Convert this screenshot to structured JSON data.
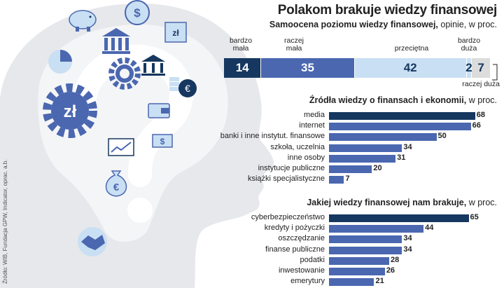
{
  "title": "Polakom brakuje wiedzy finansowej",
  "source": "Źródło: WIB, Fundacja GPW, Indicator, oprac. a.b.",
  "art": {
    "icons": [
      "piggy-bank-icon",
      "dollar-coin-icon",
      "bank-building-icon",
      "zloty-note-icon",
      "pie-chart-icon",
      "gear-icon",
      "zloty-gear-icon",
      "bank-icon",
      "euro-coins-icon",
      "wallet-icon",
      "money-card-icon",
      "rising-chart-icon",
      "cash-icon",
      "euro-bag-icon",
      "handshake-icon"
    ],
    "gear_label": "zł",
    "note_label": "zł",
    "coin_label": "$",
    "euro_label": "€",
    "card_label": "$"
  },
  "chart_data": [
    {
      "type": "bar",
      "stacked": true,
      "title": "Samoocena poziomu wiedzy finansowej,",
      "title_rest": "opinie, w proc.",
      "categories": [
        "bardzo mała",
        "raczej mała",
        "przeciętna",
        "bardzo duża",
        "raczej duża"
      ],
      "category_labels": {
        "bardzo_mala": [
          "bardzo",
          "mała"
        ],
        "raczej_mala": [
          "raczej",
          "mała"
        ],
        "przecietna": [
          "przeciętna"
        ],
        "bardzo_duza": [
          "bardzo",
          "duża"
        ],
        "raczej_duza": [
          "raczej duża"
        ]
      },
      "values": [
        14,
        35,
        42,
        2,
        7
      ],
      "colors": [
        "#16375f",
        "#4a67b0",
        "#c9dff3",
        "#c9dff3",
        "#dcdcdc"
      ],
      "label_colors": [
        "#ffffff",
        "#ffffff",
        "#16375f",
        "#16375f",
        "#16375f"
      ]
    },
    {
      "type": "bar",
      "orientation": "horizontal",
      "title": "Źródła wiedzy o finansach i ekonomii,",
      "title_rest": "w proc.",
      "categories": [
        "media",
        "internet",
        "banki i inne instytut. finansowe",
        "szkoła, uczelnia",
        "inne osoby",
        "instytucje publiczne",
        "książki specjalistyczne"
      ],
      "values": [
        68,
        66,
        50,
        34,
        31,
        20,
        7
      ]
    },
    {
      "type": "bar",
      "orientation": "horizontal",
      "title": "Jakiej wiedzy finansowej nam brakuje,",
      "title_rest": "w proc.",
      "categories": [
        "cyberbezpieczeństwo",
        "kredyty i pożyczki",
        "oszczędzanie",
        "finanse publiczne",
        "podatki",
        "inwestowanie",
        "emerytury"
      ],
      "values": [
        65,
        44,
        34,
        34,
        28,
        26,
        21
      ]
    }
  ]
}
